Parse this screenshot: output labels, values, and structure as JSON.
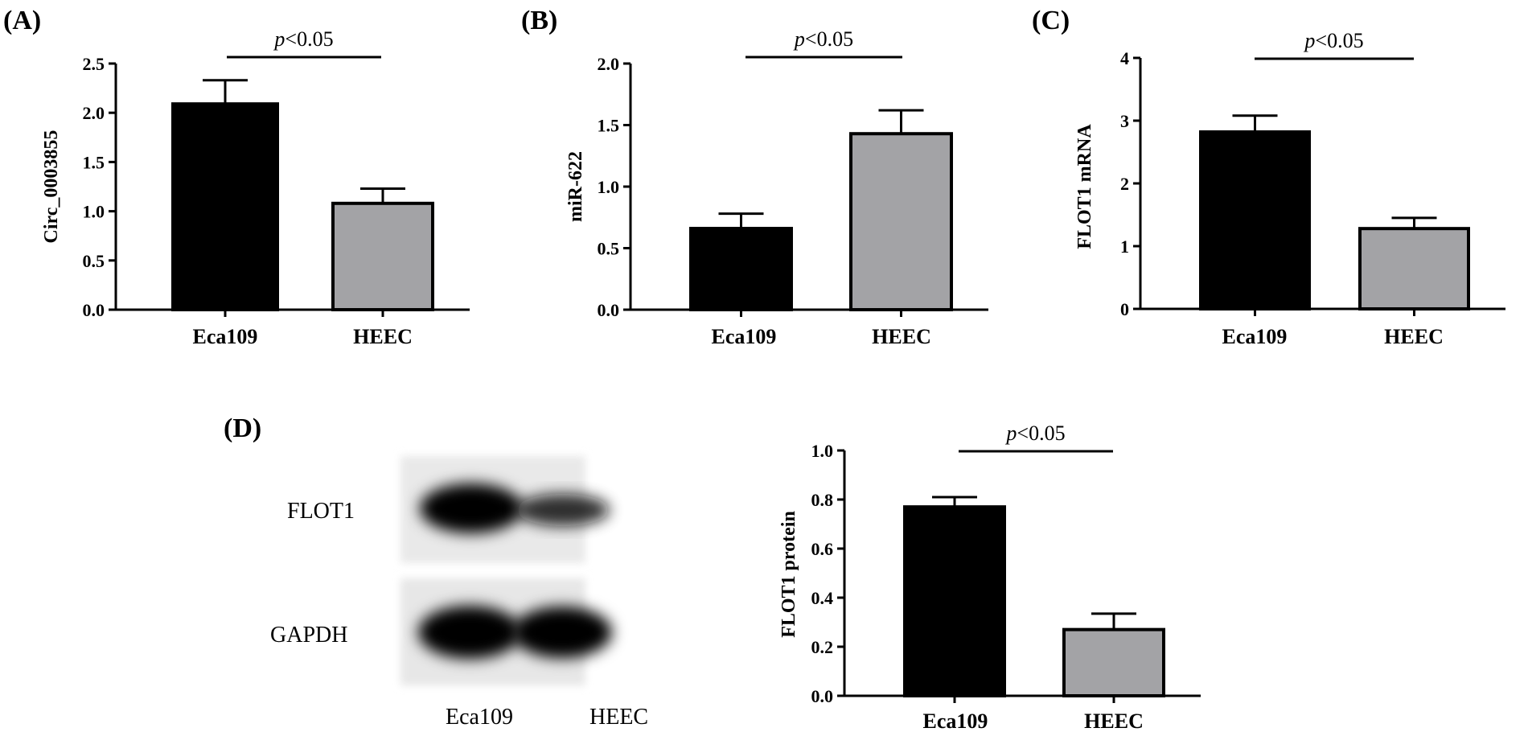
{
  "figure": {
    "panels": [
      "(A)",
      "(B)",
      "(C)",
      "(D)"
    ],
    "significance": {
      "p": "p",
      "rest": "<0.05"
    },
    "blot": {
      "rows": [
        "FLOT1",
        "GAPDH"
      ],
      "lanes": [
        "Eca109",
        "HEEC"
      ]
    }
  },
  "colors": {
    "eca109": "#000000",
    "heec": "#a3a3a6",
    "axis": "#000000"
  },
  "chart_data": [
    {
      "panel": "(A)",
      "type": "bar",
      "categories": [
        "Eca109",
        "HEEC"
      ],
      "values": [
        2.09,
        1.08
      ],
      "errors": [
        0.24,
        0.15
      ],
      "ylabel": "Circ_0003855",
      "ylim": [
        0,
        2.5
      ],
      "yticks": [
        "0.0",
        "0.5",
        "1.0",
        "1.5",
        "2.0",
        "2.5"
      ],
      "annotation": "p<0.05"
    },
    {
      "panel": "(B)",
      "type": "bar",
      "categories": [
        "Eca109",
        "HEEC"
      ],
      "values": [
        0.66,
        1.43
      ],
      "errors": [
        0.12,
        0.19
      ],
      "ylabel": "miR-622",
      "ylim": [
        0,
        2.0
      ],
      "yticks": [
        "0.0",
        "0.5",
        "1.0",
        "1.5",
        "2.0"
      ],
      "annotation": "p<0.05"
    },
    {
      "panel": "(C)",
      "type": "bar",
      "categories": [
        "Eca109",
        "HEEC"
      ],
      "values": [
        2.82,
        1.28
      ],
      "errors": [
        0.26,
        0.17
      ],
      "ylabel": "FLOT1 mRNA",
      "ylim": [
        0,
        4
      ],
      "yticks": [
        "0",
        "1",
        "2",
        "3",
        "4"
      ],
      "annotation": "p<0.05"
    },
    {
      "panel": "(D)",
      "type": "bar",
      "categories": [
        "Eca109",
        "HEEC"
      ],
      "values": [
        0.77,
        0.27
      ],
      "errors": [
        0.04,
        0.065
      ],
      "ylabel": "FLOT1 protein",
      "ylim": [
        0,
        1.0
      ],
      "yticks": [
        "0.0",
        "0.2",
        "0.4",
        "0.6",
        "0.8",
        "1.0"
      ],
      "annotation": "p<0.05"
    }
  ]
}
